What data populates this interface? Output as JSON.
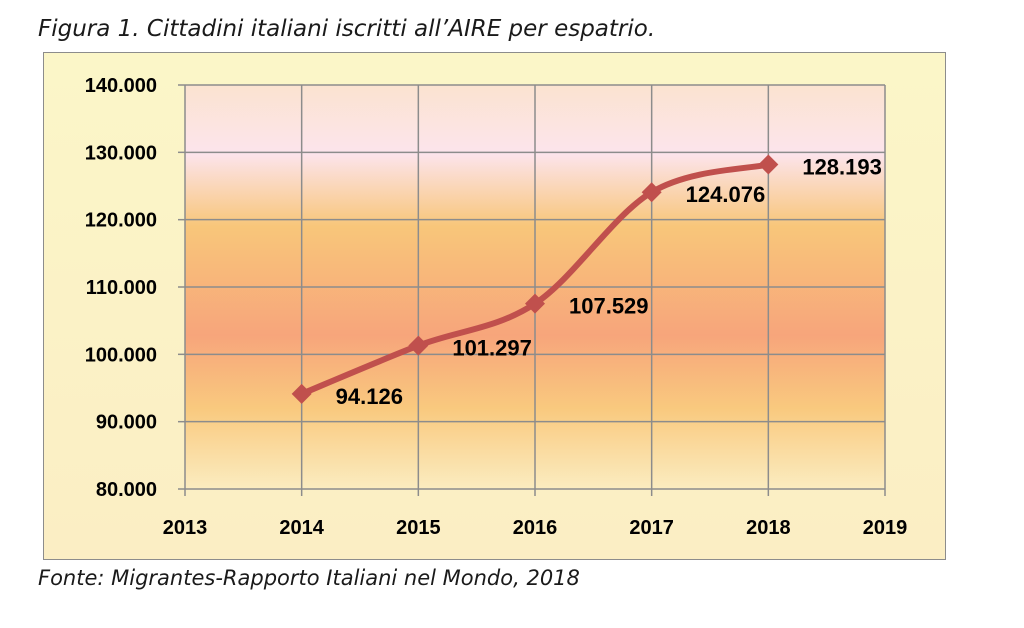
{
  "caption": "Figura 1. Cittadini italiani iscritti all’AIRE per espatrio.",
  "source": "Fonte: Migrantes-Rapporto Italiani nel Mondo, 2018",
  "colors": {
    "line": "#c0504d",
    "marker": "#c0504d",
    "grid": "#8c8c8c",
    "frame": "#8c8c8c"
  },
  "chart_data": {
    "type": "line",
    "title": "",
    "xlabel": "",
    "ylabel": "",
    "x": [
      2014,
      2015,
      2016,
      2017,
      2018
    ],
    "series": [
      {
        "values": [
          94126,
          101297,
          107529,
          124076,
          128193
        ],
        "data_labels": [
          "94.126",
          "101.297",
          "107.529",
          "124.076",
          "128.193"
        ]
      }
    ],
    "xlim": [
      2013,
      2019
    ],
    "ylim": [
      80000,
      140000
    ],
    "x_ticks": [
      "2013",
      "2014",
      "2015",
      "2016",
      "2017",
      "2018",
      "2019"
    ],
    "y_ticks": [
      "80.000",
      "90.000",
      "100.000",
      "110.000",
      "120.000",
      "130.000",
      "140.000"
    ],
    "grid": true,
    "smooth": true,
    "marker": "diamond",
    "legend": "none"
  }
}
